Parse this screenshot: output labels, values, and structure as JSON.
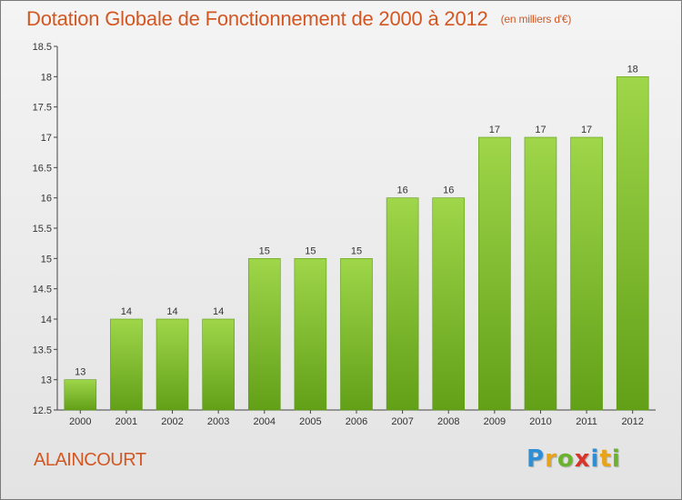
{
  "title": "Dotation Globale de Fonctionnement de 2000 à 2012",
  "title_unit": "(en milliers d'€)",
  "place": "ALAINCOURT",
  "logo": {
    "letters": [
      "P",
      "r",
      "o",
      "x",
      "i",
      "t",
      "i"
    ],
    "colors": [
      "#2e8fd6",
      "#e8a317",
      "#6bb32e",
      "#d9342b",
      "#2e8fd6",
      "#e8a317",
      "#6bb32e"
    ]
  },
  "colors": {
    "bar_light": "#9fd64a",
    "bar_dark": "#62a018",
    "title": "#d25722"
  },
  "chart_data": {
    "type": "bar",
    "categories": [
      "2000",
      "2001",
      "2002",
      "2003",
      "2004",
      "2005",
      "2006",
      "2007",
      "2008",
      "2009",
      "2010",
      "2011",
      "2012"
    ],
    "values": [
      13,
      14,
      14,
      14,
      15,
      15,
      15,
      16,
      16,
      17,
      17,
      17,
      18
    ],
    "value_labels": [
      "13",
      "14",
      "14",
      "14",
      "15",
      "15",
      "15",
      "16",
      "16",
      "17",
      "17",
      "17",
      "18"
    ],
    "title": "Dotation Globale de Fonctionnement de 2000 à 2012",
    "xlabel": "",
    "ylabel": "",
    "ylim": [
      12.5,
      18.5
    ],
    "yticks": [
      "12.5",
      "13",
      "13.5",
      "14",
      "14.5",
      "15",
      "15.5",
      "16",
      "16.5",
      "17",
      "17.5",
      "18",
      "18.5"
    ],
    "grid": false
  }
}
